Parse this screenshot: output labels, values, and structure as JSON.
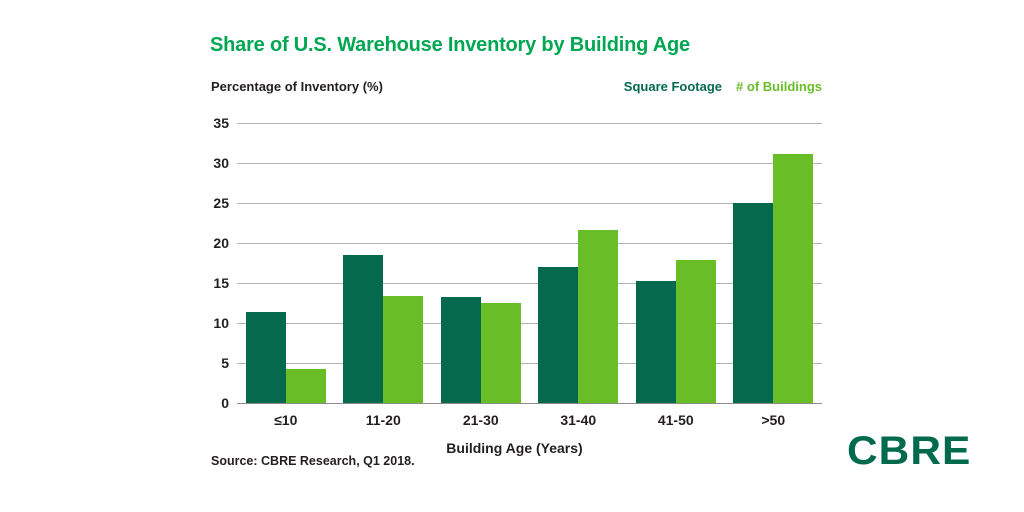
{
  "title": "Share of U.S. Warehouse Inventory by Building Age",
  "axes": {
    "y_axis_title": "Percentage of Inventory (%)",
    "x_axis_title": "Building Age (Years)"
  },
  "legend": {
    "items": [
      {
        "label": "Square Footage",
        "color": "#05694E"
      },
      {
        "label": "# of Buildings",
        "color": "#69BE28"
      }
    ]
  },
  "footer": {
    "source": "Source: CBRE Research, Q1 2018.",
    "logo_text": "CBRE"
  },
  "colors": {
    "title": "#00A651",
    "logo": "#006A4D",
    "grid": "#B2B2B2",
    "axis_line": "#8C8C8C",
    "text": "#231F20"
  },
  "chart_data": {
    "type": "bar",
    "title": "Share of U.S. Warehouse Inventory by Building Age",
    "categories": [
      "≤10",
      "11-20",
      "21-30",
      "31-40",
      "41-50",
      ">50"
    ],
    "series": [
      {
        "name": "Square Footage",
        "color": "#05694E",
        "values": [
          11.4,
          18.5,
          13.3,
          17.0,
          15.2,
          25.0
        ]
      },
      {
        "name": "# of Buildings",
        "color": "#69BE28",
        "values": [
          4.2,
          13.4,
          12.5,
          21.6,
          17.9,
          31.1
        ]
      }
    ],
    "xlabel": "Building Age (Years)",
    "ylabel": "Percentage of Inventory (%)",
    "ylim": [
      0,
      35
    ],
    "yticks": [
      0,
      5,
      10,
      15,
      20,
      25,
      30,
      35
    ],
    "grid": true,
    "legend_position": "top-right"
  }
}
